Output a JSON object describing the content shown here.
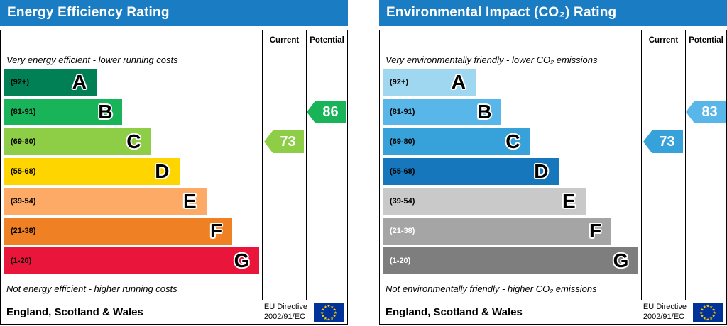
{
  "chart_data": [
    {
      "type": "bar",
      "variant": "epc-rating-scale",
      "title": "Energy Efficiency Rating",
      "header_color": "#1a7dc4",
      "column_headers": {
        "current": "Current",
        "potential": "Potential"
      },
      "top_note": "Very energy efficient - lower running costs",
      "bottom_note": "Not energy efficient - higher running costs",
      "bands": [
        {
          "letter": "A",
          "range": "(92+)",
          "min": 92,
          "max": 100,
          "color": "#008054",
          "label_color": "#000000",
          "width_pct": 36
        },
        {
          "letter": "B",
          "range": "(81-91)",
          "min": 81,
          "max": 91,
          "color": "#19b459",
          "label_color": "#000000",
          "width_pct": 46
        },
        {
          "letter": "C",
          "range": "(69-80)",
          "min": 69,
          "max": 80,
          "color": "#8dce46",
          "label_color": "#000000",
          "width_pct": 57
        },
        {
          "letter": "D",
          "range": "(55-68)",
          "min": 55,
          "max": 68,
          "color": "#ffd500",
          "label_color": "#000000",
          "width_pct": 68
        },
        {
          "letter": "E",
          "range": "(39-54)",
          "min": 39,
          "max": 54,
          "color": "#fcaa65",
          "label_color": "#000000",
          "width_pct": 78.5
        },
        {
          "letter": "F",
          "range": "(21-38)",
          "min": 21,
          "max": 38,
          "color": "#ef8023",
          "label_color": "#000000",
          "width_pct": 88.5
        },
        {
          "letter": "G",
          "range": "(1-20)",
          "min": 1,
          "max": 20,
          "color": "#e9153b",
          "label_color": "#000000",
          "width_pct": 99
        }
      ],
      "current": {
        "value": 73,
        "band": "C",
        "band_index": 2,
        "color": "#8dce46"
      },
      "potential": {
        "value": 86,
        "band": "B",
        "band_index": 1,
        "color": "#19b459"
      },
      "footer": {
        "region": "England, Scotland & Wales",
        "directive_line1": "EU Directive",
        "directive_line2": "2002/91/EC"
      }
    },
    {
      "type": "bar",
      "variant": "epc-rating-scale",
      "title": "Environmental Impact (CO₂) Rating",
      "header_color": "#1a7dc4",
      "column_headers": {
        "current": "Current",
        "potential": "Potential"
      },
      "top_note": "Very environmentally friendly - lower CO₂ emissions",
      "bottom_note": "Not environmentally friendly - higher CO₂ emissions",
      "bands": [
        {
          "letter": "A",
          "range": "(92+)",
          "min": 92,
          "max": 100,
          "color": "#9fd7f1",
          "label_color": "#000000",
          "width_pct": 36
        },
        {
          "letter": "B",
          "range": "(81-91)",
          "min": 81,
          "max": 91,
          "color": "#58b6e8",
          "label_color": "#000000",
          "width_pct": 46
        },
        {
          "letter": "C",
          "range": "(69-80)",
          "min": 69,
          "max": 80,
          "color": "#37a1da",
          "label_color": "#000000",
          "width_pct": 57
        },
        {
          "letter": "D",
          "range": "(55-68)",
          "min": 55,
          "max": 68,
          "color": "#1777bc",
          "label_color": "#000000",
          "width_pct": 68
        },
        {
          "letter": "E",
          "range": "(39-54)",
          "min": 39,
          "max": 54,
          "color": "#c9c9c9",
          "label_color": "#000000",
          "width_pct": 78.5
        },
        {
          "letter": "F",
          "range": "(21-38)",
          "min": 21,
          "max": 38,
          "color": "#a5a5a5",
          "label_color": "#ffffff",
          "width_pct": 88.5
        },
        {
          "letter": "G",
          "range": "(1-20)",
          "min": 1,
          "max": 20,
          "color": "#7e7e7e",
          "label_color": "#ffffff",
          "width_pct": 99
        }
      ],
      "current": {
        "value": 73,
        "band": "C",
        "band_index": 2,
        "color": "#37a1da"
      },
      "potential": {
        "value": 83,
        "band": "B",
        "band_index": 1,
        "color": "#58b6e8"
      },
      "footer": {
        "region": "England, Scotland & Wales",
        "directive_line1": "EU Directive",
        "directive_line2": "2002/91/EC"
      }
    }
  ],
  "eu_flag": {
    "background": "#003399",
    "stars": "#ffcc00"
  }
}
